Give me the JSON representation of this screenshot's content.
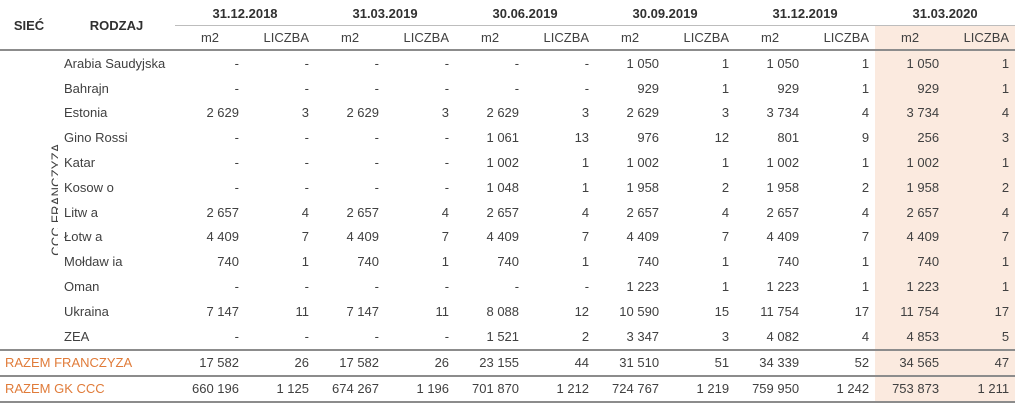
{
  "header": {
    "siec": "SIEĆ",
    "rodzaj": "RODZAJ",
    "periods": [
      "31.12.2018",
      "31.03.2019",
      "30.06.2019",
      "30.09.2019",
      "31.12.2019",
      "31.03.2020"
    ],
    "unit_m2": "m2",
    "unit_count": "LICZBA"
  },
  "group_label": "CCC FRANCZYZA",
  "rows": [
    {
      "name": "Arabia Saudyjska",
      "v": [
        "-",
        "-",
        "-",
        "-",
        "-",
        "-",
        "1 050",
        "1",
        "1 050",
        "1",
        "1 050",
        "1"
      ]
    },
    {
      "name": "Bahrajn",
      "v": [
        "-",
        "-",
        "-",
        "-",
        "-",
        "-",
        "929",
        "1",
        "929",
        "1",
        "929",
        "1"
      ]
    },
    {
      "name": "Estonia",
      "v": [
        "2 629",
        "3",
        "2 629",
        "3",
        "2 629",
        "3",
        "2 629",
        "3",
        "3 734",
        "4",
        "3 734",
        "4"
      ]
    },
    {
      "name": "Gino Rossi",
      "v": [
        "-",
        "-",
        "-",
        "-",
        "1 061",
        "13",
        "976",
        "12",
        "801",
        "9",
        "256",
        "3"
      ]
    },
    {
      "name": "Katar",
      "v": [
        "-",
        "-",
        "-",
        "-",
        "1 002",
        "1",
        "1 002",
        "1",
        "1 002",
        "1",
        "1 002",
        "1"
      ]
    },
    {
      "name": "Kosow o",
      "v": [
        "-",
        "-",
        "-",
        "-",
        "1 048",
        "1",
        "1 958",
        "2",
        "1 958",
        "2",
        "1 958",
        "2"
      ]
    },
    {
      "name": "Litw a",
      "v": [
        "2 657",
        "4",
        "2 657",
        "4",
        "2 657",
        "4",
        "2 657",
        "4",
        "2 657",
        "4",
        "2 657",
        "4"
      ]
    },
    {
      "name": "Łotw a",
      "v": [
        "4 409",
        "7",
        "4 409",
        "7",
        "4 409",
        "7",
        "4 409",
        "7",
        "4 409",
        "7",
        "4 409",
        "7"
      ]
    },
    {
      "name": "Mołdaw ia",
      "v": [
        "740",
        "1",
        "740",
        "1",
        "740",
        "1",
        "740",
        "1",
        "740",
        "1",
        "740",
        "1"
      ]
    },
    {
      "name": "Oman",
      "v": [
        "-",
        "-",
        "-",
        "-",
        "-",
        "-",
        "1 223",
        "1",
        "1 223",
        "1",
        "1 223",
        "1"
      ]
    },
    {
      "name": "Ukraina",
      "v": [
        "7 147",
        "11",
        "7 147",
        "11",
        "8 088",
        "12",
        "10 590",
        "15",
        "11 754",
        "17",
        "11 754",
        "17"
      ]
    },
    {
      "name": "ZEA",
      "v": [
        "-",
        "-",
        "-",
        "-",
        "1 521",
        "2",
        "3 347",
        "3",
        "4 082",
        "4",
        "4 853",
        "5"
      ]
    }
  ],
  "totals": [
    {
      "label": "RAZEM FRANCZYZA",
      "v": [
        "17 582",
        "26",
        "17 582",
        "26",
        "23 155",
        "44",
        "31 510",
        "51",
        "34 339",
        "52",
        "34 565",
        "47"
      ]
    },
    {
      "label": "RAZEM GK CCC",
      "v": [
        "660 196",
        "1 125",
        "674 267",
        "1 196",
        "701 870",
        "1 212",
        "724 767",
        "1 219",
        "759 950",
        "1 242",
        "753 873",
        "1 211"
      ]
    }
  ],
  "colors": {
    "highlight_column": "#fbeadf",
    "total_label": "#e07b39",
    "rule": "#8c8c8c"
  }
}
